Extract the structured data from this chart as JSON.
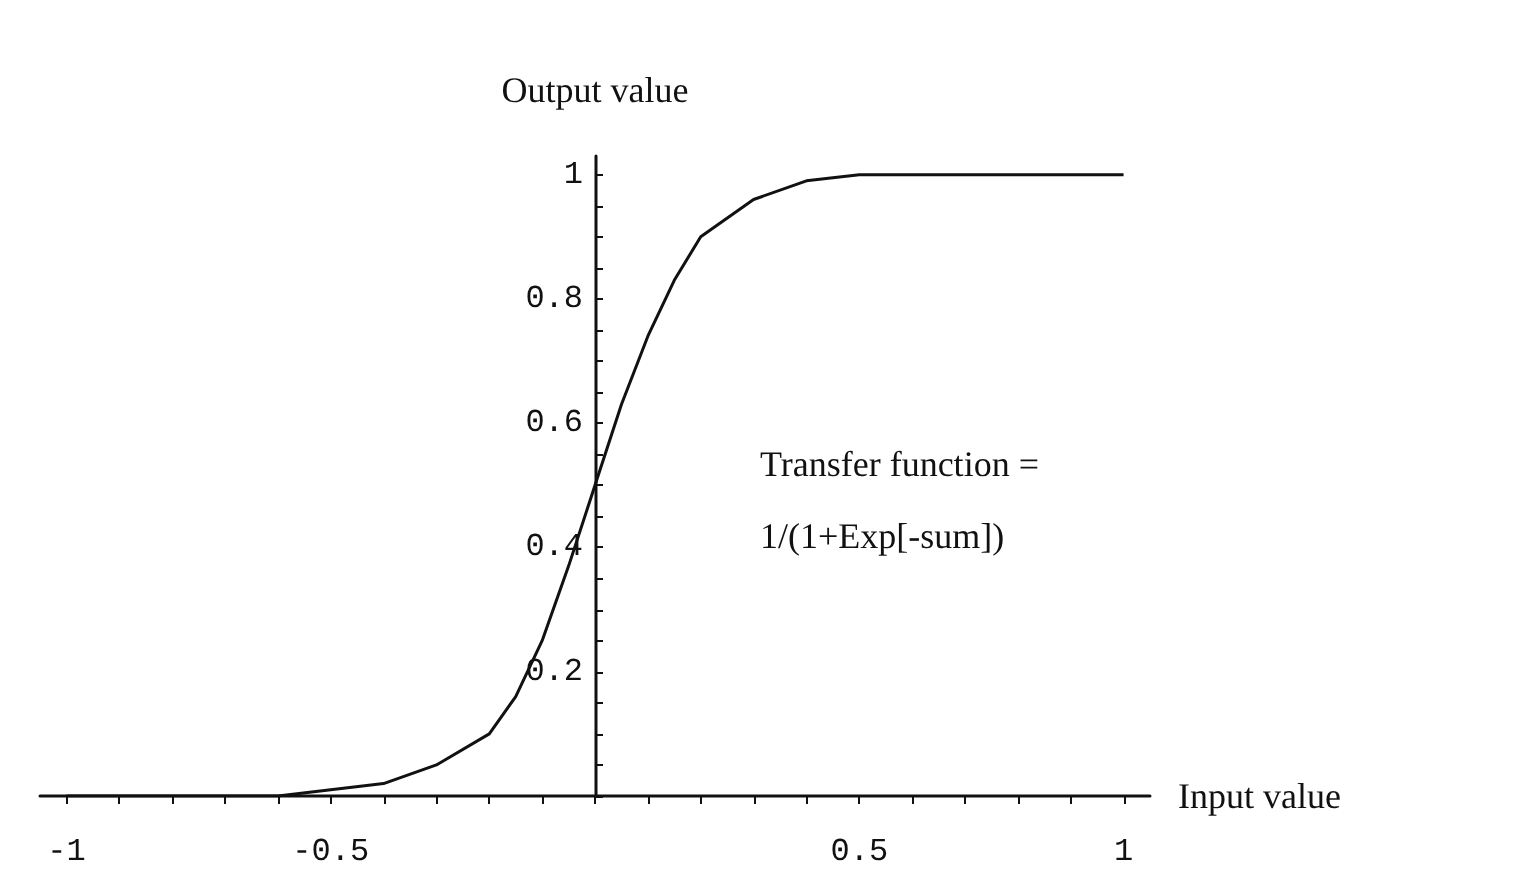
{
  "chart_data": {
    "type": "line",
    "xlabel": "Input value",
    "ylabel": "Output value",
    "annotations": [
      "Transfer function =",
      "1/(1+Exp[-sum])"
    ],
    "x": [
      -1,
      -0.8,
      -0.6,
      -0.5,
      -0.4,
      -0.3,
      -0.2,
      -0.15,
      -0.1,
      -0.05,
      0,
      0.05,
      0.1,
      0.15,
      0.2,
      0.3,
      0.4,
      0.5,
      1
    ],
    "series": [
      {
        "color": "#111111",
        "values": [
          0,
          0,
          0,
          0.01,
          0.02,
          0.05,
          0.1,
          0.16,
          0.25,
          0.37,
          0.5,
          0.63,
          0.74,
          0.83,
          0.9,
          0.96,
          0.99,
          1,
          1
        ]
      }
    ],
    "xlim": [
      -1.05,
      1.05
    ],
    "xticks": [
      -1,
      {
        "value": -0.9,
        "label": null
      },
      {
        "value": -0.8,
        "label": null
      },
      {
        "value": -0.7,
        "label": null
      },
      {
        "value": -0.6,
        "label": null
      },
      -0.5,
      {
        "value": -0.4,
        "label": null
      },
      {
        "value": -0.3,
        "label": null
      },
      {
        "value": -0.2,
        "label": null
      },
      {
        "value": -0.1,
        "label": null
      },
      {
        "value": 0,
        "label": null
      },
      {
        "value": 0.1,
        "label": null
      },
      {
        "value": 0.2,
        "label": null
      },
      {
        "value": 0.3,
        "label": null
      },
      {
        "value": 0.4,
        "label": null
      },
      0.5,
      {
        "value": 0.6,
        "label": null
      },
      {
        "value": 0.7,
        "label": null
      },
      {
        "value": 0.8,
        "label": null
      },
      {
        "value": 0.9,
        "label": null
      },
      1
    ],
    "ylim": [
      0,
      1.03
    ],
    "yticks": [
      {
        "value": 0,
        "label": null
      },
      {
        "value": 0.05,
        "label": null
      },
      {
        "value": 0.1,
        "label": null
      },
      {
        "value": 0.15,
        "label": null
      },
      0.2,
      {
        "value": 0.25,
        "label": null
      },
      {
        "value": 0.3,
        "label": null
      },
      {
        "value": 0.35,
        "label": null
      },
      0.4,
      {
        "value": 0.45,
        "label": null
      },
      {
        "value": 0.5,
        "label": null
      },
      {
        "value": 0.55,
        "label": null
      },
      0.6,
      {
        "value": 0.65,
        "label": null
      },
      {
        "value": 0.7,
        "label": null
      },
      {
        "value": 0.75,
        "label": null
      },
      0.8,
      {
        "value": 0.85,
        "label": null
      },
      {
        "value": 0.9,
        "label": null
      },
      {
        "value": 0.95,
        "label": null
      },
      1
    ],
    "grid": false,
    "marker": "none",
    "line_style": "solid"
  }
}
